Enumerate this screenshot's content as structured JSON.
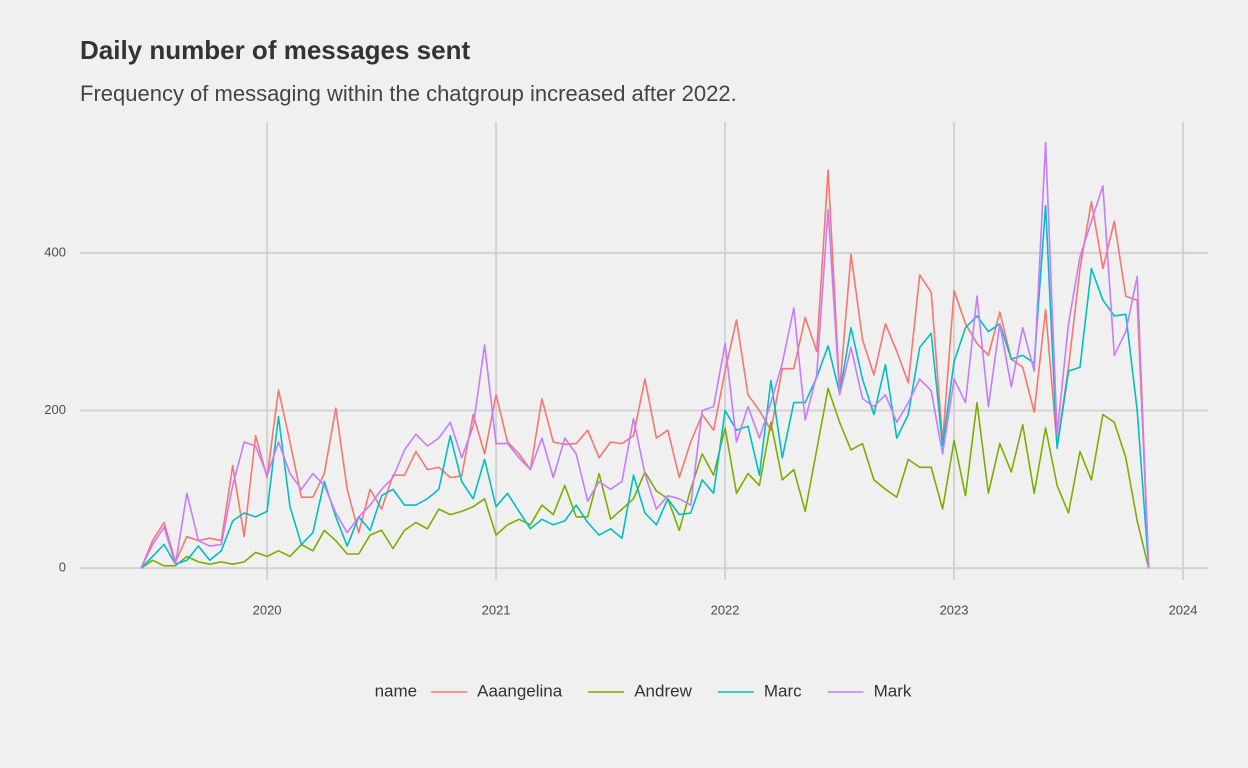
{
  "chart_data": {
    "type": "line",
    "title": "Daily number of messages sent",
    "subtitle": "Frequency of messaging within the chatgroup increased after 2022.",
    "legend_title": "name",
    "legend_position": "bottom",
    "grid": true,
    "xlim": [
      2019.183,
      2024.109
    ],
    "xticks": [
      2020,
      2021,
      2022,
      2023,
      2024
    ],
    "ylim": [
      -15,
      566
    ],
    "yticks": [
      0,
      200,
      400
    ],
    "x": [
      2019.45,
      2019.5,
      2019.55,
      2019.6,
      2019.65,
      2019.7,
      2019.75,
      2019.8,
      2019.85,
      2019.9,
      2019.95,
      2020,
      2020.05,
      2020.1,
      2020.15,
      2020.2,
      2020.25,
      2020.3,
      2020.35,
      2020.4,
      2020.45,
      2020.5,
      2020.55,
      2020.6,
      2020.65,
      2020.7,
      2020.75,
      2020.8,
      2020.85,
      2020.9,
      2020.95,
      2021,
      2021.05,
      2021.1,
      2021.15,
      2021.2,
      2021.25,
      2021.3,
      2021.35,
      2021.4,
      2021.45,
      2021.5,
      2021.55,
      2021.6,
      2021.65,
      2021.7,
      2021.75,
      2021.8,
      2021.85,
      2021.9,
      2021.95,
      2022,
      2022.05,
      2022.1,
      2022.15,
      2022.2,
      2022.25,
      2022.3,
      2022.35,
      2022.4,
      2022.45,
      2022.5,
      2022.55,
      2022.6,
      2022.65,
      2022.7,
      2022.75,
      2022.8,
      2022.85,
      2022.9,
      2022.95,
      2023,
      2023.05,
      2023.1,
      2023.15,
      2023.2,
      2023.25,
      2023.3,
      2023.35,
      2023.4,
      2023.45,
      2023.5,
      2023.55,
      2023.6,
      2023.65,
      2023.7,
      2023.75,
      2023.8,
      2023.85
    ],
    "series": [
      {
        "name": "Aaangelina",
        "color": "#F8766D",
        "values": [
          0,
          35,
          58,
          8,
          40,
          35,
          38,
          35,
          130,
          40,
          168,
          115,
          226,
          160,
          90,
          90,
          120,
          203,
          100,
          45,
          100,
          75,
          118,
          118,
          148,
          125,
          128,
          115,
          117,
          195,
          145,
          220,
          160,
          145,
          125,
          215,
          160,
          157,
          158,
          175,
          140,
          160,
          158,
          168,
          240,
          165,
          175,
          115,
          160,
          195,
          175,
          250,
          315,
          220,
          200,
          175,
          253,
          253,
          318,
          275,
          505,
          225,
          398,
          290,
          245,
          310,
          275,
          235,
          372,
          350,
          160,
          352,
          310,
          285,
          270,
          325,
          265,
          255,
          198,
          328,
          155,
          255,
          380,
          465,
          380,
          440,
          345,
          340,
          0
        ]
      },
      {
        "name": "Andrew",
        "color": "#7CAE00",
        "values": [
          0,
          10,
          3,
          3,
          15,
          8,
          5,
          8,
          5,
          8,
          20,
          15,
          22,
          15,
          30,
          22,
          48,
          35,
          18,
          18,
          42,
          48,
          25,
          48,
          58,
          50,
          75,
          68,
          72,
          78,
          88,
          42,
          55,
          62,
          55,
          80,
          68,
          105,
          65,
          65,
          120,
          62,
          75,
          88,
          122,
          98,
          88,
          48,
          100,
          145,
          118,
          178,
          95,
          120,
          105,
          185,
          112,
          125,
          72,
          150,
          228,
          185,
          150,
          158,
          112,
          100,
          90,
          138,
          128,
          128,
          75,
          162,
          92,
          210,
          95,
          158,
          122,
          182,
          95,
          178,
          105,
          70,
          148,
          112,
          195,
          185,
          140,
          60,
          0
        ]
      },
      {
        "name": "Marc",
        "color": "#00BFC4",
        "values": [
          0,
          15,
          30,
          5,
          10,
          28,
          10,
          22,
          60,
          70,
          65,
          72,
          192,
          78,
          30,
          45,
          110,
          65,
          28,
          65,
          48,
          92,
          100,
          80,
          80,
          88,
          100,
          168,
          110,
          88,
          138,
          78,
          95,
          72,
          50,
          62,
          55,
          60,
          80,
          58,
          42,
          50,
          38,
          118,
          70,
          55,
          88,
          68,
          70,
          112,
          95,
          200,
          175,
          180,
          118,
          238,
          140,
          210,
          210,
          242,
          282,
          222,
          305,
          240,
          195,
          258,
          165,
          195,
          280,
          298,
          155,
          262,
          305,
          320,
          300,
          310,
          265,
          270,
          260,
          460,
          152,
          250,
          255,
          380,
          340,
          320,
          322,
          200,
          0
        ]
      },
      {
        "name": "Mark",
        "color": "#C77CFF",
        "values": [
          0,
          30,
          52,
          5,
          95,
          35,
          28,
          30,
          105,
          160,
          155,
          118,
          160,
          120,
          100,
          120,
          105,
          70,
          45,
          65,
          80,
          100,
          115,
          150,
          170,
          155,
          165,
          185,
          140,
          180,
          283,
          158,
          158,
          140,
          125,
          165,
          115,
          165,
          145,
          85,
          110,
          100,
          110,
          190,
          120,
          75,
          92,
          88,
          80,
          200,
          205,
          285,
          160,
          205,
          165,
          210,
          260,
          330,
          188,
          245,
          455,
          220,
          280,
          215,
          205,
          220,
          185,
          210,
          240,
          225,
          145,
          240,
          210,
          345,
          205,
          310,
          230,
          305,
          250,
          540,
          170,
          310,
          395,
          440,
          485,
          270,
          300,
          370,
          0
        ]
      }
    ]
  }
}
